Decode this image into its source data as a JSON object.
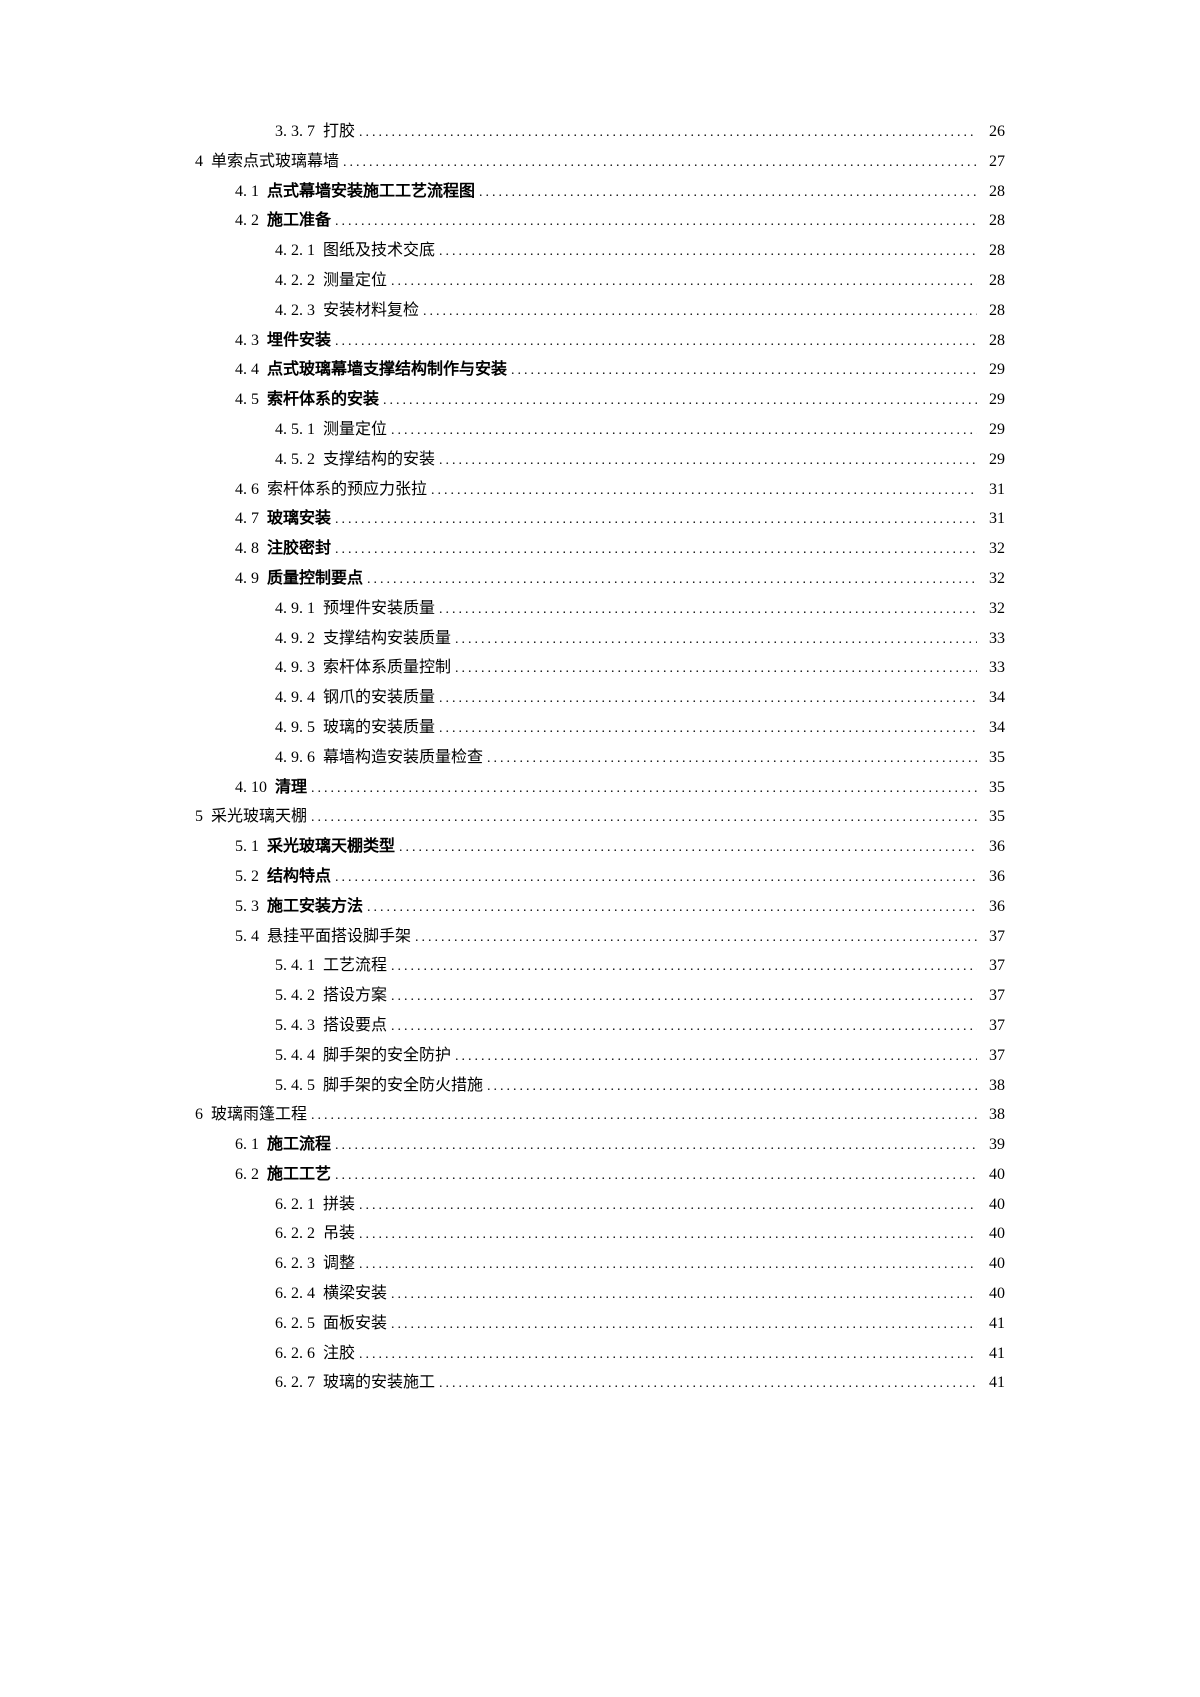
{
  "toc": [
    {
      "indent": 2,
      "number": "3. 3. 7",
      "title": "打胶",
      "bold": false,
      "page": "26"
    },
    {
      "indent": 0,
      "number": "4",
      "title": "单索点式玻璃幕墙",
      "bold": false,
      "page": "27"
    },
    {
      "indent": 1,
      "number": "4. 1",
      "title": "点式幕墙安装施工工艺流程图",
      "bold": true,
      "page": "28"
    },
    {
      "indent": 1,
      "number": "4. 2",
      "title": "施工准备",
      "bold": true,
      "page": "28"
    },
    {
      "indent": 2,
      "number": "4. 2. 1",
      "title": "图纸及技术交底",
      "bold": false,
      "page": "28"
    },
    {
      "indent": 2,
      "number": "4. 2. 2",
      "title": "测量定位",
      "bold": false,
      "page": "28"
    },
    {
      "indent": 2,
      "number": "4. 2. 3",
      "title": "安装材料复检",
      "bold": false,
      "page": "28"
    },
    {
      "indent": 1,
      "number": "4. 3",
      "title": "埋件安装",
      "bold": true,
      "page": "28"
    },
    {
      "indent": 1,
      "number": "4. 4",
      "title": "点式玻璃幕墙支撑结构制作与安装",
      "bold": true,
      "page": "29"
    },
    {
      "indent": 1,
      "number": "4. 5",
      "title": "索杆体系的安装",
      "bold": true,
      "page": "29"
    },
    {
      "indent": 2,
      "number": "4. 5. 1",
      "title": "测量定位",
      "bold": false,
      "page": "29"
    },
    {
      "indent": 2,
      "number": "4. 5. 2",
      "title": "支撑结构的安装",
      "bold": false,
      "page": "29"
    },
    {
      "indent": 1,
      "number": "4. 6",
      "title": "索杆体系的预应力张拉",
      "bold": false,
      "page": "31"
    },
    {
      "indent": 1,
      "number": "4. 7",
      "title": "玻璃安装",
      "bold": true,
      "page": "31"
    },
    {
      "indent": 1,
      "number": "4. 8",
      "title": "注胶密封",
      "bold": true,
      "page": "32"
    },
    {
      "indent": 1,
      "number": "4. 9",
      "title": "质量控制要点",
      "bold": true,
      "page": "32"
    },
    {
      "indent": 2,
      "number": "4. 9. 1",
      "title": "预埋件安装质量",
      "bold": false,
      "page": "32"
    },
    {
      "indent": 2,
      "number": "4. 9. 2",
      "title": "支撑结构安装质量",
      "bold": false,
      "page": "33"
    },
    {
      "indent": 2,
      "number": "4. 9. 3",
      "title": "索杆体系质量控制",
      "bold": false,
      "page": "33"
    },
    {
      "indent": 2,
      "number": "4. 9. 4",
      "title": "钢爪的安装质量",
      "bold": false,
      "page": "34"
    },
    {
      "indent": 2,
      "number": "4. 9. 5",
      "title": "玻璃的安装质量",
      "bold": false,
      "page": "34"
    },
    {
      "indent": 2,
      "number": "4. 9. 6",
      "title": "幕墙构造安装质量检查",
      "bold": false,
      "page": "35"
    },
    {
      "indent": 1,
      "number": "4. 10",
      "title": "清理",
      "bold": true,
      "page": "35"
    },
    {
      "indent": 0,
      "number": "5",
      "title": "采光玻璃天棚",
      "bold": false,
      "page": "35"
    },
    {
      "indent": 1,
      "number": "5. 1",
      "title": "采光玻璃天棚类型",
      "bold": true,
      "page": "36"
    },
    {
      "indent": 1,
      "number": "5. 2",
      "title": "结构特点",
      "bold": true,
      "page": "36"
    },
    {
      "indent": 1,
      "number": "5. 3",
      "title": "施工安装方法",
      "bold": true,
      "page": "36"
    },
    {
      "indent": 1,
      "number": "5. 4",
      "title": "悬挂平面搭设脚手架",
      "bold": false,
      "page": "37"
    },
    {
      "indent": 2,
      "number": "5. 4. 1",
      "title": "工艺流程",
      "bold": false,
      "page": "37"
    },
    {
      "indent": 2,
      "number": "5. 4. 2",
      "title": "搭设方案",
      "bold": false,
      "page": "37"
    },
    {
      "indent": 2,
      "number": "5. 4. 3",
      "title": "搭设要点",
      "bold": false,
      "page": "37"
    },
    {
      "indent": 2,
      "number": "5. 4. 4",
      "title": "脚手架的安全防护",
      "bold": false,
      "page": "37"
    },
    {
      "indent": 2,
      "number": "5. 4. 5",
      "title": "脚手架的安全防火措施",
      "bold": false,
      "page": "38"
    },
    {
      "indent": 0,
      "number": "6",
      "title": "玻璃雨篷工程",
      "bold": false,
      "page": "38"
    },
    {
      "indent": 1,
      "number": "6. 1",
      "title": "施工流程",
      "bold": true,
      "page": "39"
    },
    {
      "indent": 1,
      "number": "6. 2",
      "title": "施工工艺",
      "bold": true,
      "page": "40"
    },
    {
      "indent": 2,
      "number": "6. 2. 1",
      "title": "拼装",
      "bold": false,
      "page": "40"
    },
    {
      "indent": 2,
      "number": "6. 2. 2",
      "title": "吊装",
      "bold": false,
      "page": "40"
    },
    {
      "indent": 2,
      "number": "6. 2. 3",
      "title": "调整",
      "bold": false,
      "page": "40"
    },
    {
      "indent": 2,
      "number": "6. 2. 4",
      "title": "横梁安装",
      "bold": false,
      "page": "40"
    },
    {
      "indent": 2,
      "number": "6. 2. 5",
      "title": "面板安装",
      "bold": false,
      "page": "41"
    },
    {
      "indent": 2,
      "number": "6. 2. 6",
      "title": "注胶",
      "bold": false,
      "page": "41"
    },
    {
      "indent": 2,
      "number": "6. 2. 7",
      "title": "玻璃的安装施工",
      "bold": false,
      "page": "41"
    }
  ],
  "dots": "...................................................................................................................................."
}
